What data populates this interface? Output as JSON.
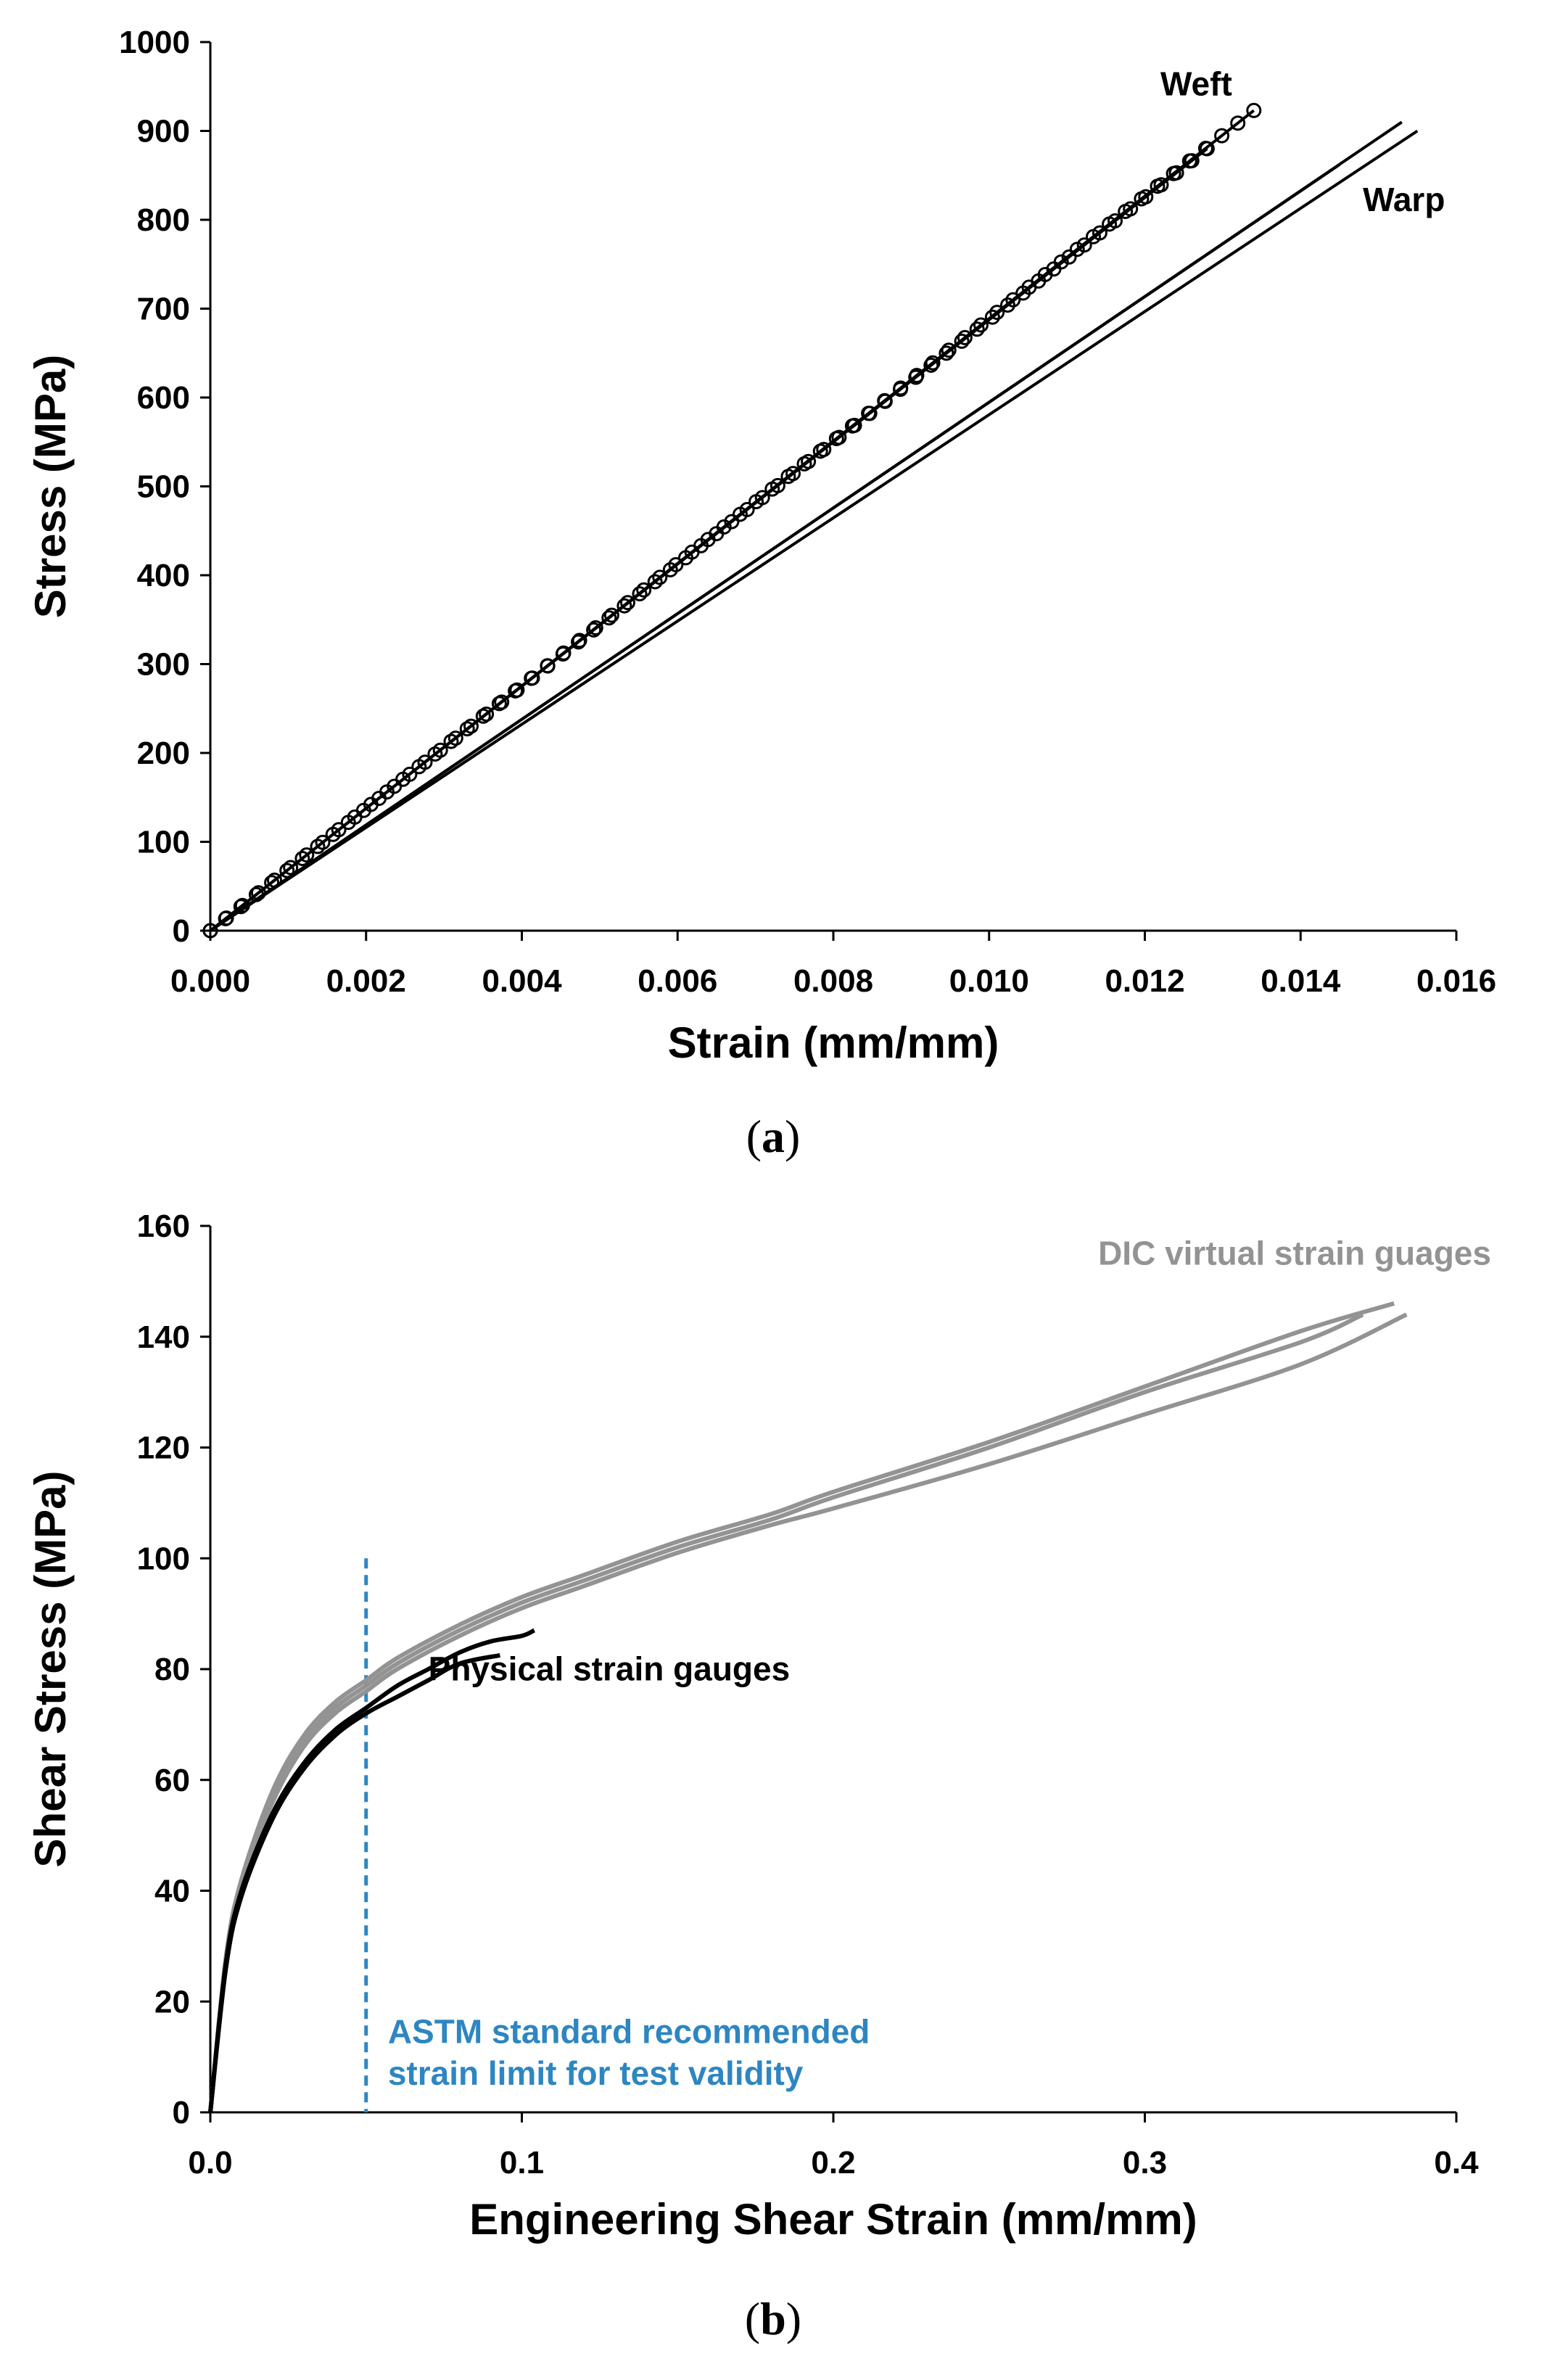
{
  "chart_data": [
    {
      "type": "line",
      "panel_label": "(a)",
      "panel_letter": "a",
      "xlabel": "Strain (mm/mm)",
      "ylabel": "Stress (MPa)",
      "xlim": [
        0,
        0.016
      ],
      "ylim": [
        0,
        1000
      ],
      "x_ticks": [
        "0.000",
        "0.002",
        "0.004",
        "0.006",
        "0.008",
        "0.010",
        "0.012",
        "0.014",
        "0.016"
      ],
      "y_ticks": [
        "0",
        "100",
        "200",
        "300",
        "400",
        "500",
        "600",
        "700",
        "800",
        "900",
        "1000"
      ],
      "series": [
        {
          "name": "Weft",
          "marker": "circle",
          "color": "#000000",
          "x": [
            0,
            0.0134
          ],
          "y": [
            0,
            923
          ]
        },
        {
          "name": "Weft",
          "marker": "circle",
          "color": "#000000",
          "x": [
            0,
            0.0128
          ],
          "y": [
            0,
            880
          ]
        },
        {
          "name": "Warp",
          "marker": "none",
          "color": "#000000",
          "x": [
            0,
            0.0153
          ],
          "y": [
            0,
            910
          ]
        },
        {
          "name": "Warp",
          "marker": "none",
          "color": "#000000",
          "x": [
            0,
            0.0155
          ],
          "y": [
            0,
            900
          ]
        },
        {
          "name": "Warp",
          "marker": "none",
          "color": "#000000",
          "x": [
            0,
            0.0145
          ],
          "y": [
            0,
            862
          ]
        }
      ],
      "annotations": [
        {
          "text": "Weft",
          "x": 0.0122,
          "y": 940
        },
        {
          "text": "Warp",
          "x": 0.0148,
          "y": 810
        }
      ]
    },
    {
      "type": "line",
      "panel_label": "(b)",
      "panel_letter": "b",
      "xlabel": "Engineering Shear Strain (mm/mm)",
      "ylabel": "Shear Stress (MPa)",
      "xlim": [
        0,
        0.4
      ],
      "ylim": [
        0,
        160
      ],
      "x_ticks": [
        "0.0",
        "0.1",
        "0.2",
        "0.3",
        "0.4"
      ],
      "y_ticks": [
        "0",
        "20",
        "40",
        "60",
        "80",
        "100",
        "120",
        "140",
        "160"
      ],
      "series": [
        {
          "name": "DIC virtual strain guages",
          "color": "#939393",
          "x": [
            0,
            0.005,
            0.01,
            0.02,
            0.03,
            0.04,
            0.05,
            0.06,
            0.08,
            0.1,
            0.12,
            0.15,
            0.18,
            0.2,
            0.25,
            0.3,
            0.35,
            0.38
          ],
          "y": [
            0,
            28,
            42,
            58,
            68,
            74,
            78,
            82,
            88,
            93,
            97,
            103,
            108,
            112,
            121,
            131,
            141,
            146
          ]
        },
        {
          "name": "DIC virtual strain guages",
          "color": "#939393",
          "x": [
            0,
            0.005,
            0.01,
            0.02,
            0.03,
            0.04,
            0.05,
            0.06,
            0.08,
            0.1,
            0.12,
            0.15,
            0.18,
            0.2,
            0.25,
            0.3,
            0.35,
            0.37
          ],
          "y": [
            0,
            27,
            41,
            57,
            67,
            73,
            77,
            81,
            87,
            92,
            96,
            102,
            107,
            111,
            120,
            130,
            139,
            144
          ]
        },
        {
          "name": "DIC virtual strain guages",
          "color": "#939393",
          "x": [
            0,
            0.005,
            0.01,
            0.02,
            0.03,
            0.04,
            0.05,
            0.06,
            0.08,
            0.1,
            0.12,
            0.15,
            0.18,
            0.2,
            0.25,
            0.3,
            0.35,
            0.384
          ],
          "y": [
            0,
            27,
            41,
            56,
            66,
            72,
            76,
            80,
            86,
            91,
            95,
            101,
            106,
            109,
            117,
            126,
            135,
            144
          ]
        },
        {
          "name": "Physical strain gauges",
          "color": "#000000",
          "x": [
            0,
            0.005,
            0.01,
            0.02,
            0.03,
            0.04,
            0.05,
            0.06,
            0.07,
            0.08,
            0.09,
            0.1,
            0.104
          ],
          "y": [
            0,
            27,
            40,
            54,
            63,
            69,
            73,
            77,
            80,
            83,
            85,
            86,
            87
          ]
        },
        {
          "name": "Physical strain gauges",
          "color": "#000000",
          "x": [
            0,
            0.005,
            0.01,
            0.02,
            0.03,
            0.04,
            0.05,
            0.06,
            0.07,
            0.08,
            0.093
          ],
          "y": [
            0,
            26,
            39,
            53,
            62,
            68,
            72,
            75,
            78,
            81,
            82.5
          ]
        }
      ],
      "limit_line": {
        "x": 0.05,
        "y_top": 100,
        "color": "#2E86C1"
      },
      "annotations": [
        {
          "text": "DIC virtual strain guages",
          "color": "#939393",
          "x": 0.285,
          "y": 153
        },
        {
          "text": "Physical strain gauges",
          "color": "#000000",
          "x": 0.07,
          "y": 78
        },
        {
          "text": "ASTM standard recommended",
          "color": "#2E86C1",
          "x": 0.057,
          "y": 12.5
        },
        {
          "text": "strain limit for test validity",
          "color": "#2E86C1",
          "x": 0.057,
          "y": 5
        }
      ]
    }
  ]
}
